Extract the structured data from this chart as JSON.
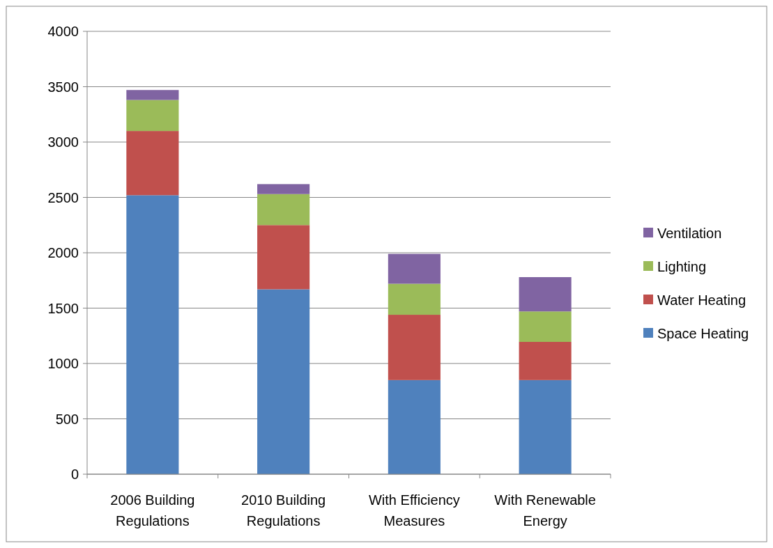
{
  "chart_data": {
    "type": "bar",
    "stacked": true,
    "categories": [
      "2006 Building Regulations",
      "2010 Building Regulations",
      "With Efficiency Measures",
      "With Renewable Energy"
    ],
    "series": [
      {
        "name": "Space Heating",
        "color": "#4f81bd",
        "values": [
          2520,
          1670,
          850,
          850
        ]
      },
      {
        "name": "Water Heating",
        "color": "#c0504d",
        "values": [
          580,
          580,
          590,
          345
        ]
      },
      {
        "name": "Lighting",
        "color": "#9bbb59",
        "values": [
          280,
          280,
          280,
          275
        ]
      },
      {
        "name": "Ventilation",
        "color": "#8064a2",
        "values": [
          90,
          90,
          270,
          310
        ]
      }
    ],
    "ylim": [
      0,
      4000
    ],
    "yticks": [
      0,
      500,
      1000,
      1500,
      2000,
      2500,
      3000,
      3500,
      4000
    ],
    "grid": "y",
    "legend": "right"
  }
}
